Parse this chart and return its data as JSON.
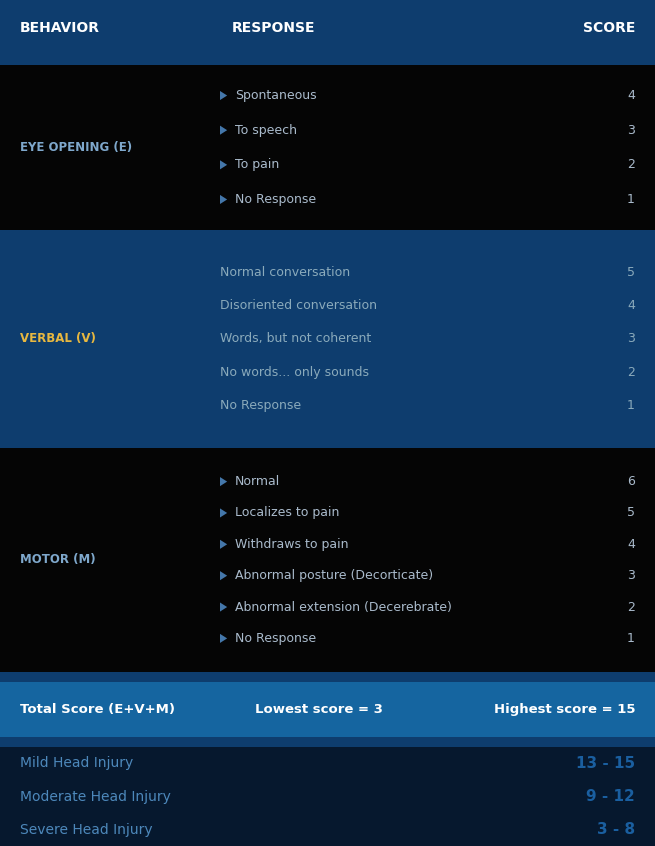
{
  "header_bg": "#0e3d6e",
  "header_text_color": "#ffffff",
  "black_bg": "#050505",
  "dark_blue_bg": "#0e3d6e",
  "sep_color": "#0e3d6e",
  "total_row_bg": "#1565a0",
  "injury_bg": "#06182e",
  "header_labels": [
    "BEHAVIOR",
    "RESPONSE",
    "SCORE"
  ],
  "sections": [
    {
      "label": "EYE OPENING (E)",
      "label_color": "#7fa8cc",
      "bg": "#050505",
      "items": [
        {
          "text": "Spontaneous",
          "score": "4",
          "has_arrow": true
        },
        {
          "text": "To speech",
          "score": "3",
          "has_arrow": true
        },
        {
          "text": "To pain",
          "score": "2",
          "has_arrow": true
        },
        {
          "text": "No Response",
          "score": "1",
          "has_arrow": true
        }
      ],
      "item_color": "#aabbcc",
      "score_color": "#aabbcc"
    },
    {
      "label": "VERBAL (V)",
      "label_color": "#e8b840",
      "bg": "#0e3d6e",
      "items": [
        {
          "text": "Normal conversation",
          "score": "5",
          "has_arrow": false
        },
        {
          "text": "Disoriented conversation",
          "score": "4",
          "has_arrow": false
        },
        {
          "text": "Words, but not coherent",
          "score": "3",
          "has_arrow": false
        },
        {
          "text": "No words... only sounds",
          "score": "2",
          "has_arrow": false
        },
        {
          "text": "No Response",
          "score": "1",
          "has_arrow": false
        }
      ],
      "item_color": "#8aaabb",
      "score_color": "#8aaabb"
    },
    {
      "label": "MOTOR (M)",
      "label_color": "#7fa8cc",
      "bg": "#050505",
      "items": [
        {
          "text": "Normal",
          "score": "6",
          "has_arrow": true
        },
        {
          "text": "Localizes to pain",
          "score": "5",
          "has_arrow": true
        },
        {
          "text": "Withdraws to pain",
          "score": "4",
          "has_arrow": true
        },
        {
          "text": "Abnormal posture (Decorticate)",
          "score": "3",
          "has_arrow": true
        },
        {
          "text": "Abnormal extension (Decerebrate)",
          "score": "2",
          "has_arrow": true
        },
        {
          "text": "No Response",
          "score": "1",
          "has_arrow": true
        }
      ],
      "item_color": "#aabbcc",
      "score_color": "#aabbcc"
    }
  ],
  "total_row": {
    "col1": "Total Score (E+V+M)",
    "col2": "Lowest score = 3",
    "col3": "Highest score = 15",
    "text_color": "#ffffff",
    "bg": "#1565a0"
  },
  "injury_rows": [
    {
      "label": "Mild Head Injury",
      "score": "13 - 15",
      "label_color": "#4d88bb",
      "score_color": "#1a5fa0"
    },
    {
      "label": "Moderate Head Injury",
      "score": "9 - 12",
      "label_color": "#4d88bb",
      "score_color": "#1a5fa0"
    },
    {
      "label": "Severe Head Injury",
      "score": "3 - 8",
      "label_color": "#4d88bb",
      "score_color": "#1a5fa0"
    }
  ]
}
